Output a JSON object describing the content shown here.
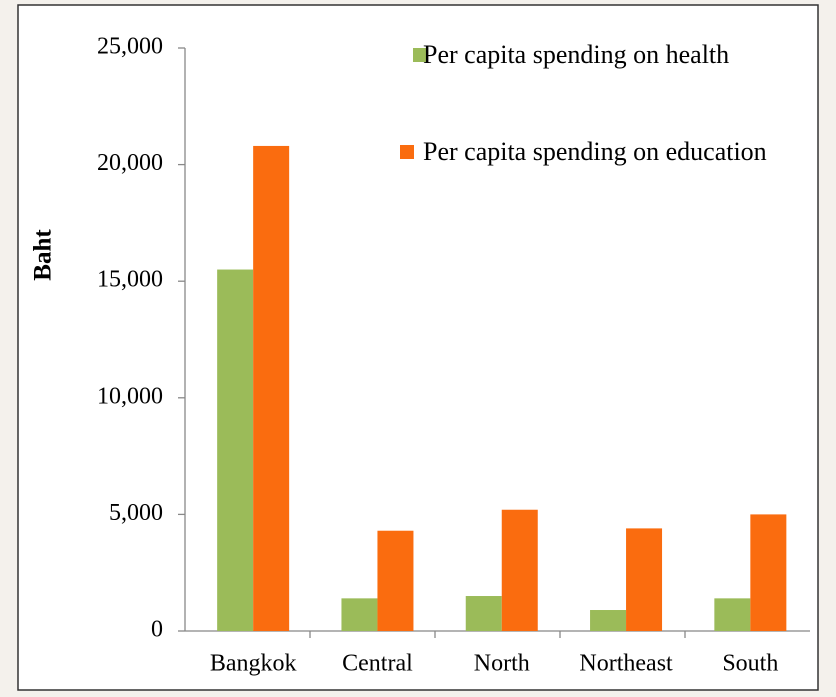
{
  "chart_data": {
    "type": "bar",
    "y_label": "Baht",
    "categories": [
      "Bangkok",
      "Central",
      "North",
      "Northeast",
      "South"
    ],
    "series": [
      {
        "name": "Per capita spending on health",
        "color": "#9bbb59",
        "values": [
          15500,
          1400,
          1500,
          900,
          1400
        ]
      },
      {
        "name": "Per capita spending on education",
        "color": "#fa6c0f",
        "values": [
          20800,
          4300,
          5200,
          4400,
          5000
        ]
      }
    ],
    "ylim": [
      0,
      25000
    ],
    "yticks": [
      0,
      {
        "value": 5000,
        "label": "5,000"
      },
      {
        "value": 10000,
        "label": "10,000"
      },
      {
        "value": 15000,
        "label": "15,000"
      },
      {
        "value": 20000,
        "label": "20,000"
      },
      {
        "value": 25000,
        "label": "25,000"
      }
    ],
    "legend": "upper right"
  }
}
